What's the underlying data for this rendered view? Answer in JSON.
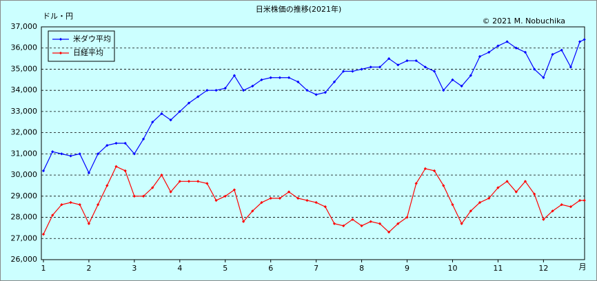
{
  "chart_data": {
    "type": "line",
    "title": "日米株価の推移(2021年)",
    "y_label": "ドル・円",
    "x_label": "月",
    "annotation": "© 2021 M. Nobuchika",
    "x": [
      1.0,
      1.2,
      1.4,
      1.6,
      1.8,
      2.0,
      2.2,
      2.4,
      2.6,
      2.8,
      3.0,
      3.2,
      3.4,
      3.6,
      3.8,
      4.0,
      4.2,
      4.4,
      4.6,
      4.8,
      5.0,
      5.2,
      5.4,
      5.6,
      5.8,
      6.0,
      6.2,
      6.4,
      6.6,
      6.8,
      7.0,
      7.2,
      7.4,
      7.6,
      7.8,
      8.0,
      8.2,
      8.4,
      8.6,
      8.8,
      9.0,
      9.2,
      9.4,
      9.6,
      9.8,
      10.0,
      10.2,
      10.4,
      10.6,
      10.8,
      11.0,
      11.2,
      11.4,
      11.6,
      11.8,
      12.0,
      12.2,
      12.4,
      12.6,
      12.8,
      12.9
    ],
    "series": [
      {
        "name": "米ダウ平均",
        "color": "#0000ff",
        "values": [
          30200,
          31100,
          31000,
          30900,
          31000,
          30100,
          31000,
          31400,
          31500,
          31500,
          31000,
          31700,
          32500,
          32900,
          32600,
          33000,
          33400,
          33700,
          34000,
          34000,
          34100,
          34700,
          34000,
          34200,
          34500,
          34600,
          34600,
          34600,
          34400,
          34000,
          33800,
          33900,
          34400,
          34900,
          34900,
          35000,
          35100,
          35100,
          35500,
          35200,
          35400,
          35400,
          35100,
          34900,
          34000,
          34500,
          34200,
          34700,
          35600,
          35800,
          36100,
          36300,
          36000,
          35800,
          35000,
          34600,
          35700,
          35900,
          35100,
          36300,
          36400
        ]
      },
      {
        "name": "日経平均",
        "color": "#ff0000",
        "values": [
          27200,
          28100,
          28600,
          28700,
          28600,
          27700,
          28600,
          29500,
          30400,
          30200,
          29000,
          29000,
          29400,
          30000,
          29200,
          29700,
          29700,
          29700,
          29600,
          28800,
          29000,
          29300,
          27800,
          28300,
          28700,
          28900,
          28900,
          29200,
          28900,
          28800,
          28700,
          28500,
          27700,
          27600,
          27900,
          27600,
          27800,
          27700,
          27300,
          27700,
          28000,
          29600,
          30300,
          30200,
          29500,
          28600,
          27700,
          28300,
          28700,
          28900,
          29400,
          29700,
          29200,
          29700,
          29100,
          27900,
          28300,
          28600,
          28500,
          28800,
          28800
        ]
      }
    ],
    "xlim": [
      1,
      12.95
    ],
    "xticks": [
      1,
      2,
      3,
      4,
      5,
      6,
      7,
      8,
      9,
      10,
      11,
      12
    ],
    "ylim": [
      26000,
      37000
    ],
    "yticks": [
      {
        "value": 26000,
        "label": "26,000"
      },
      {
        "value": 27000,
        "label": "27,000"
      },
      {
        "value": 28000,
        "label": "28,000"
      },
      {
        "value": 29000,
        "label": "29,000"
      },
      {
        "value": 30000,
        "label": "30,000"
      },
      {
        "value": 31000,
        "label": "31,000"
      },
      {
        "value": 32000,
        "label": "32,000"
      },
      {
        "value": 33000,
        "label": "33,000"
      },
      {
        "value": 34000,
        "label": "34,000"
      },
      {
        "value": 35000,
        "label": "35,000"
      },
      {
        "value": 36000,
        "label": "36,000"
      },
      {
        "value": 37000,
        "label": "37,000"
      }
    ],
    "grid": true
  }
}
